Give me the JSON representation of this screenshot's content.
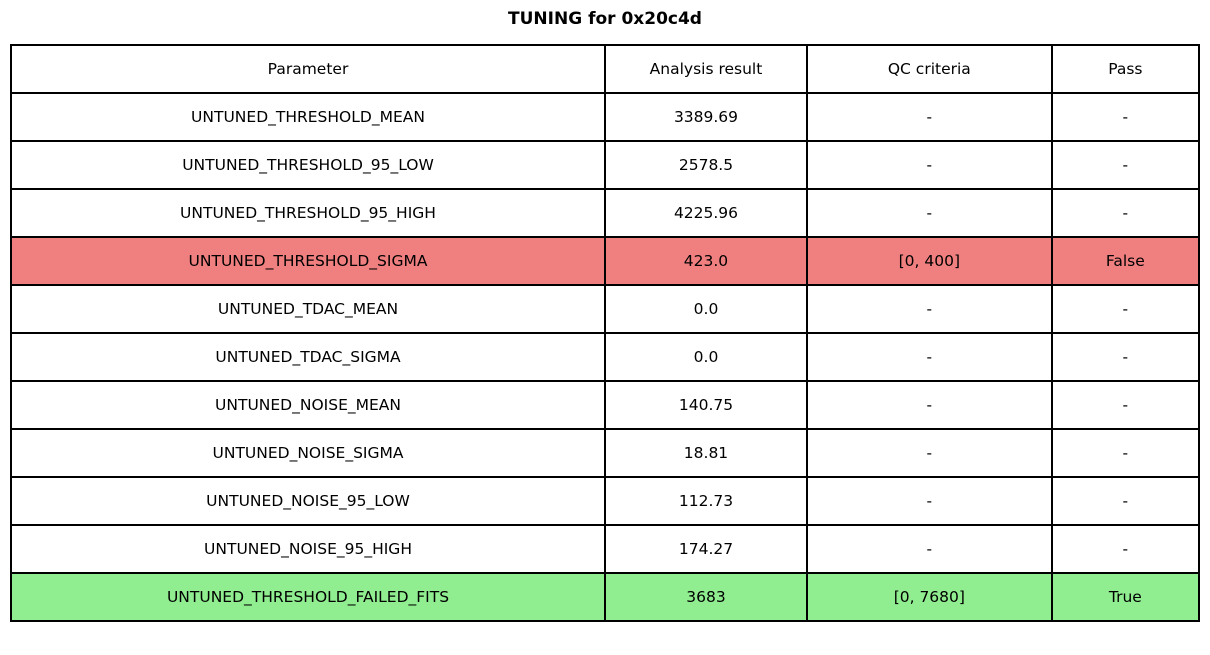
{
  "title": "TUNING for 0x20c4d",
  "chart_data": {
    "type": "table",
    "title": "TUNING for 0x20c4d",
    "columns": [
      "Parameter",
      "Analysis result",
      "QC criteria",
      "Pass"
    ],
    "rows": [
      {
        "parameter": "UNTUNED_THRESHOLD_MEAN",
        "analysis_result": "3389.69",
        "qc_criteria": "-",
        "pass": "-",
        "status": "neutral"
      },
      {
        "parameter": "UNTUNED_THRESHOLD_95_LOW",
        "analysis_result": "2578.5",
        "qc_criteria": "-",
        "pass": "-",
        "status": "neutral"
      },
      {
        "parameter": "UNTUNED_THRESHOLD_95_HIGH",
        "analysis_result": "4225.96",
        "qc_criteria": "-",
        "pass": "-",
        "status": "neutral"
      },
      {
        "parameter": "UNTUNED_THRESHOLD_SIGMA",
        "analysis_result": "423.0",
        "qc_criteria": "[0, 400]",
        "pass": "False",
        "status": "fail"
      },
      {
        "parameter": "UNTUNED_TDAC_MEAN",
        "analysis_result": "0.0",
        "qc_criteria": "-",
        "pass": "-",
        "status": "neutral"
      },
      {
        "parameter": "UNTUNED_TDAC_SIGMA",
        "analysis_result": "0.0",
        "qc_criteria": "-",
        "pass": "-",
        "status": "neutral"
      },
      {
        "parameter": "UNTUNED_NOISE_MEAN",
        "analysis_result": "140.75",
        "qc_criteria": "-",
        "pass": "-",
        "status": "neutral"
      },
      {
        "parameter": "UNTUNED_NOISE_SIGMA",
        "analysis_result": "18.81",
        "qc_criteria": "-",
        "pass": "-",
        "status": "neutral"
      },
      {
        "parameter": "UNTUNED_NOISE_95_LOW",
        "analysis_result": "112.73",
        "qc_criteria": "-",
        "pass": "-",
        "status": "neutral"
      },
      {
        "parameter": "UNTUNED_NOISE_95_HIGH",
        "analysis_result": "174.27",
        "qc_criteria": "-",
        "pass": "-",
        "status": "neutral"
      },
      {
        "parameter": "UNTUNED_THRESHOLD_FAILED_FITS",
        "analysis_result": "3683",
        "qc_criteria": "[0, 7680]",
        "pass": "True",
        "status": "pass"
      }
    ]
  },
  "colors": {
    "fail_row_bg": "#f08080",
    "pass_row_bg": "#90ee90",
    "neutral_row_bg": "#ffffff",
    "border": "#000000",
    "text": "#000000",
    "background": "#ffffff"
  }
}
